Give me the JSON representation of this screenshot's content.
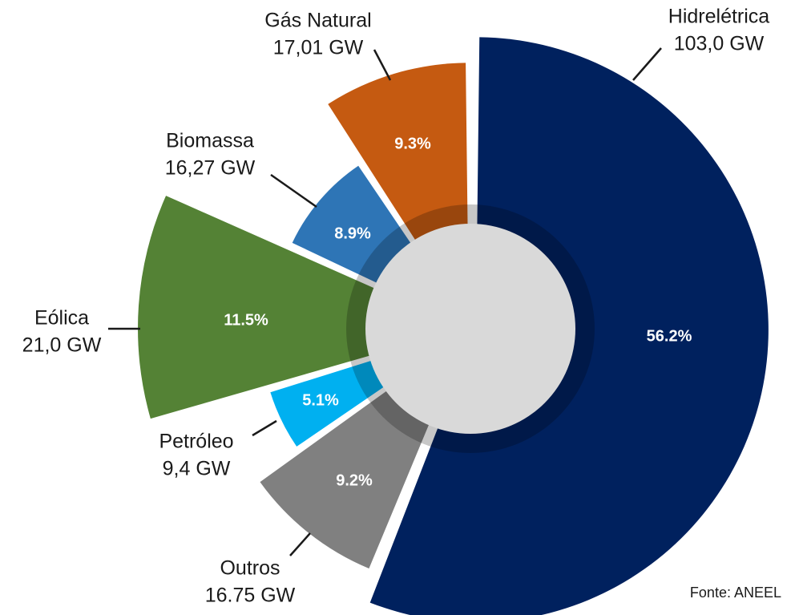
{
  "chart_data": {
    "type": "pie",
    "categories": [
      "Hidrelétrica",
      "Outros",
      "Petróleo",
      "Eólica",
      "Biomassa",
      "Gás Natural"
    ],
    "values": [
      56.2,
      9.2,
      5.1,
      11.5,
      8.9,
      9.3
    ],
    "value_labels": [
      "56.2%",
      "9.2%",
      "5.1%",
      "11.5%",
      "8.9%",
      "9.3%"
    ],
    "capacity": [
      103.0,
      16.75,
      9.4,
      21.0,
      16.27,
      17.01
    ],
    "capacity_labels": [
      "103,0 GW",
      "16.75 GW",
      "9,4 GW",
      "21,0 GW",
      "16,27 GW",
      "17,01 GW"
    ],
    "colors": [
      "#00215e",
      "#808080",
      "#00b0f0",
      "#548235",
      "#2e75b6",
      "#c55a11"
    ],
    "source": "Fonte: ANEEL"
  }
}
